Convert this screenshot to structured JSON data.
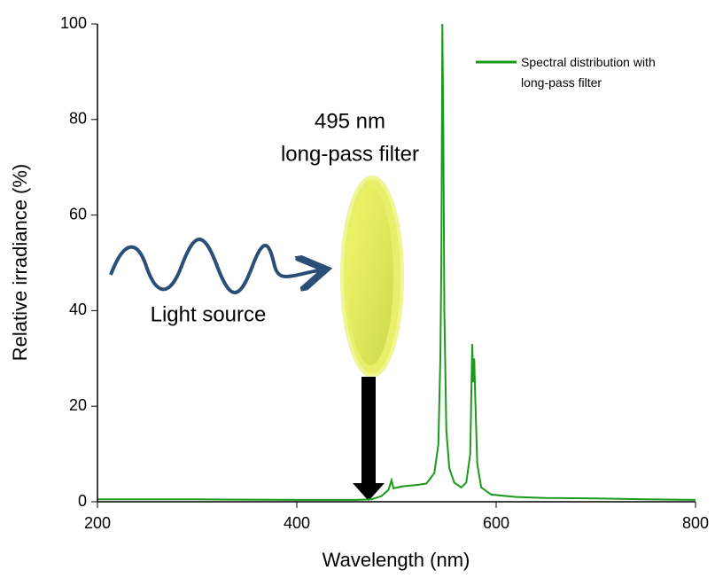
{
  "chart_data": {
    "type": "line",
    "x_label": "Wavelength (nm)",
    "y_label": "Relative irradiance (%)",
    "annotations": [
      "495 nm",
      "long-pass filter",
      "Light source"
    ],
    "xlim": [
      200,
      800
    ],
    "xticks": [
      200,
      400,
      600,
      800
    ],
    "ylim": [
      0,
      100
    ],
    "yticks": [
      0,
      20,
      40,
      60,
      80,
      100
    ],
    "legend": "top-right",
    "series": [
      {
        "name": "Spectral distribution with long-pass filter",
        "color": "#1a9a1a",
        "x": [
          200,
          300,
          400,
          460,
          475,
          485,
          492,
          495,
          497,
          505,
          520,
          530,
          538,
          542,
          544,
          545,
          546,
          547,
          548,
          550,
          553,
          558,
          565,
          570,
          574,
          576,
          577,
          578,
          579,
          581,
          585,
          595,
          620,
          650,
          700,
          750,
          800
        ],
        "values": [
          0.5,
          0.5,
          0.4,
          0.4,
          0.5,
          1.2,
          2.5,
          4.5,
          2.8,
          3.2,
          3.5,
          3.8,
          6,
          12,
          30,
          50,
          100,
          78,
          40,
          15,
          7,
          4,
          3,
          4,
          10,
          33,
          25,
          30,
          22,
          8,
          3,
          1.5,
          1,
          0.8,
          0.7,
          0.5,
          0.4
        ]
      }
    ]
  }
}
